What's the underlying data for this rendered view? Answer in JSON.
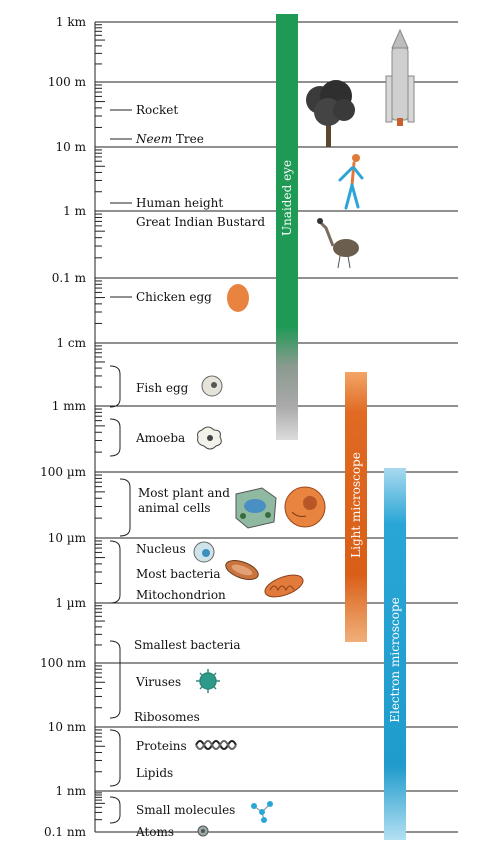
{
  "scale_labels": [
    "1 km",
    "100 m",
    "10 m",
    "1 m",
    "0.1 m",
    "1 cm",
    "1 mm",
    "100 µm",
    "10 µm",
    "1 µm",
    "100 nm",
    "10 nm",
    "1 nm",
    "0.1 nm"
  ],
  "items": {
    "rocket": "Rocket",
    "neem_italic": "Neem",
    "neem_rest": " Tree",
    "human": "Human height",
    "bustard": "Great Indian Bustard",
    "chicken_egg": "Chicken egg",
    "fish_egg": "Fish egg",
    "amoeba": "Amoeba",
    "plant_cells_1": "Most plant and",
    "plant_cells_2": "animal cells",
    "nucleus": "Nucleus",
    "bacteria": "Most bacteria",
    "mitochondrion": "Mitochondrion",
    "smallest_bacteria": "Smallest bacteria",
    "viruses": "Viruses",
    "ribosomes": "Ribosomes",
    "proteins": "Proteins",
    "lipids": "Lipids",
    "small_molecules": "Small molecules",
    "atoms": "Atoms"
  },
  "bars": {
    "eye": "Unaided eye",
    "light": "Light microscope",
    "electron": "Electron microscope"
  },
  "colors": {
    "eye": "#1e9a55",
    "light": "#e06a23",
    "electron": "#2aa6d6"
  },
  "icons": [
    "rocket-icon",
    "neem-tree-icon",
    "human-figure-icon",
    "bustard-icon",
    "chicken-egg-icon",
    "fish-egg-icon",
    "amoeba-icon",
    "plant-cell-icon",
    "animal-cell-icon",
    "nucleus-icon",
    "bacterium-icon",
    "mitochondrion-icon",
    "virus-icon",
    "protein-icon",
    "small-molecule-icon",
    "atom-icon"
  ]
}
